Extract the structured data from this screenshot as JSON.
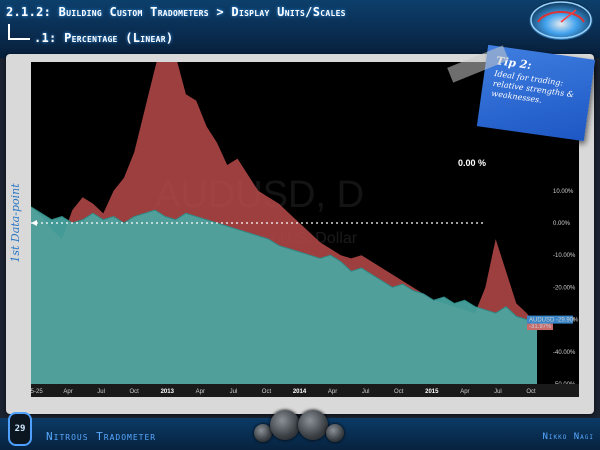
{
  "header": {
    "title": "2.1.2: Building Custom Tradometers  > Display Units/Scales",
    "subtitle": ".1: Percentage (Linear)"
  },
  "tip": {
    "title": "Tip 2:",
    "body": "Ideal for trading: relative strengths & weaknesses."
  },
  "side_label": "1st Data-point",
  "zero_label": "0.00 %",
  "chart": {
    "watermark": "AUDUSD, D",
    "watermark_sub": "Australian Dollar / U.S. Dollar"
  },
  "badges": {
    "secondary": "-31.97%",
    "symbol": "AUDUSD",
    "symbol_value": "-29.90%"
  },
  "nav_controls": [
    "«",
    "‹",
    "○",
    "›",
    "»"
  ],
  "forward_button": "»",
  "footer": {
    "brand": "Nitrous Tradometer",
    "author": "Nikko Nagi",
    "page": "29"
  },
  "colors": {
    "red_series": "#b84a4a",
    "teal_series": "#2f8c89",
    "teal_fill_light": "#4aa7a3",
    "accent": "#2b78c4",
    "badge_symbol": "#3a86c9",
    "badge_secondary": "#c76b6b"
  },
  "chart_data": {
    "type": "area",
    "y_axis_unit": "%",
    "ylim": [
      -50,
      50
    ],
    "y_ticks": [
      "10.00%",
      "0.00%",
      "-10.00%",
      "-20.00%",
      "-30.00%",
      "-40.00%",
      "-50.00%"
    ],
    "x_ticks": [
      "05-25",
      "Apr",
      "Jul",
      "Oct",
      "2013",
      "Apr",
      "Jul",
      "Oct",
      "2014",
      "Apr",
      "Jul",
      "Oct",
      "2015",
      "Apr",
      "Jul",
      "Oct"
    ],
    "x_tick_years": [
      "2013",
      "2014",
      "2015"
    ],
    "series": [
      {
        "name": "AUDUSD",
        "values": [
          5,
          3,
          1,
          2,
          0,
          1,
          3,
          1,
          2,
          0,
          2,
          3,
          4,
          2,
          1,
          3,
          2,
          1,
          0,
          -1,
          -2,
          -3,
          -4,
          -5,
          -7,
          -8,
          -9,
          -10,
          -11,
          -10,
          -12,
          -15,
          -14,
          -16,
          -18,
          -20,
          -19,
          -21,
          -22,
          -24,
          -23,
          -25,
          -24,
          -26,
          -27,
          -28,
          -26,
          -29,
          -30,
          -30
        ]
      },
      {
        "name": "Secondary",
        "values": [
          5,
          2,
          -2,
          -5,
          4,
          8,
          6,
          3,
          10,
          14,
          22,
          35,
          48,
          60,
          52,
          40,
          38,
          30,
          25,
          18,
          20,
          15,
          10,
          8,
          6,
          3,
          0,
          -3,
          -6,
          -8,
          -10,
          -11,
          -10,
          -12,
          -14,
          -16,
          -18,
          -20,
          -22,
          -24,
          -25,
          -26,
          -27,
          -28,
          -20,
          -5,
          -15,
          -25,
          -28,
          -32
        ]
      }
    ]
  }
}
